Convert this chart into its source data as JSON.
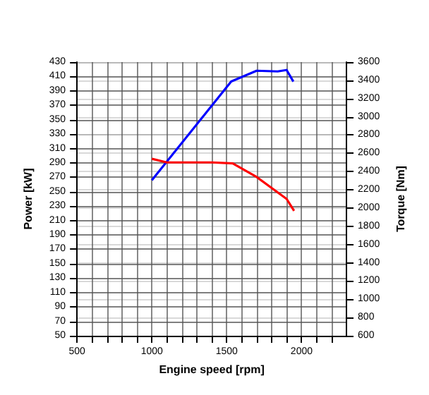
{
  "chart_data": {
    "type": "line",
    "xlabel": "Engine speed [rpm]",
    "ylabel": "Power [kW]",
    "y2label": "Torque [Nm]",
    "xlim": [
      500,
      2300
    ],
    "xticks": [
      500,
      {
        "value": 600,
        "label": null
      },
      {
        "value": 700,
        "label": null
      },
      {
        "value": 800,
        "label": null
      },
      {
        "value": 900,
        "label": null
      },
      1000,
      {
        "value": 1100,
        "label": null
      },
      {
        "value": 1200,
        "label": null
      },
      {
        "value": 1300,
        "label": null
      },
      {
        "value": 1400,
        "label": null
      },
      1500,
      {
        "value": 1600,
        "label": null
      },
      {
        "value": 1700,
        "label": null
      },
      {
        "value": 1800,
        "label": null
      },
      {
        "value": 1900,
        "label": null
      },
      2000,
      {
        "value": 2100,
        "label": null
      },
      {
        "value": 2200,
        "label": null
      }
    ],
    "ylim": [
      50,
      430
    ],
    "yticks": [
      50,
      70,
      90,
      110,
      130,
      150,
      170,
      190,
      210,
      230,
      250,
      270,
      290,
      310,
      330,
      350,
      370,
      390,
      410,
      430
    ],
    "y2lim": [
      600,
      3600
    ],
    "y2ticks": [
      600,
      800,
      1000,
      1200,
      1400,
      1600,
      1800,
      2000,
      2200,
      2400,
      2600,
      2800,
      3000,
      3200,
      3400,
      3600
    ],
    "grid": true,
    "marker": "none",
    "line_style": "solid",
    "series": [
      {
        "color": "#0000ff",
        "x": [
          1000,
          1530,
          1700,
          1840,
          1900,
          1945
        ],
        "values": [
          266,
          403,
          418,
          417,
          419,
          403
        ]
      },
      {
        "color": "#ff0000",
        "axis": "y2",
        "x": [
          1000,
          1100,
          1400,
          1540,
          1700,
          1850,
          1900,
          1950
        ],
        "values": [
          2540,
          2500,
          2500,
          2490,
          2340,
          2160,
          2100,
          1970
        ]
      }
    ]
  }
}
